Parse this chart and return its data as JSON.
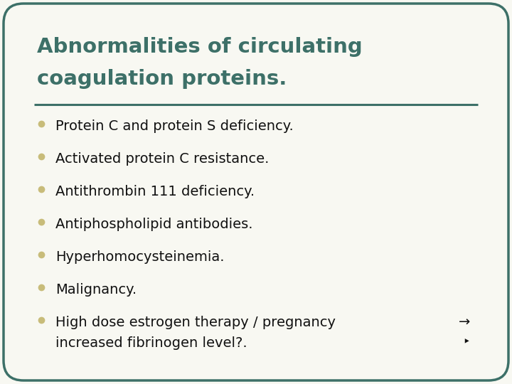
{
  "title_line1": "Abnormalities of circulating",
  "title_line2": "coagulation proteins.",
  "title_color": "#3d7068",
  "bullet_color": "#c8bc7a",
  "text_color": "#111111",
  "background_color": "#f8f8f2",
  "border_color": "#3d7068",
  "bullet_items": [
    "Protein C and protein S deficiency.",
    "Activated protein C resistance.",
    "Antithrombin 111 deficiency.",
    "Antiphospholipid antibodies.",
    "Hyperhomocysteinemia.",
    "Malignancy.",
    "High dose estrogen therapy / pregnancy",
    "increased fibrinogen level?."
  ],
  "line_color": "#3d7068",
  "figsize": [
    7.2,
    5.4
  ],
  "dpi": 100
}
